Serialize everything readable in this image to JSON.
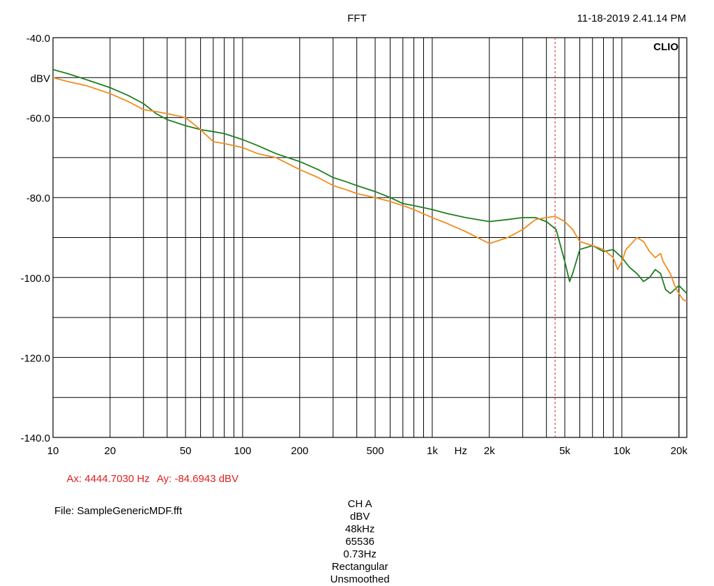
{
  "header": {
    "title": "FFT",
    "timestamp": "11-18-2019 2.41.14 PM",
    "brand": "CLIO"
  },
  "cursor": {
    "ax_text": "Ax: 4444.7030 Hz",
    "ay_text": "Ay: -84.6943 dBV",
    "color": "#e0201e"
  },
  "settings": {
    "channel": "CH A",
    "unit": "dBV",
    "sample_rate": "48kHz",
    "fft_size": "65536",
    "resolution": "0.73Hz",
    "window": "Rectangular",
    "smoothing": "Unsmoothed"
  },
  "file": "File: SampleGenericMDF.fft",
  "chart_data": {
    "type": "line",
    "title": "FFT",
    "x_scale": "log",
    "xlim": [
      10,
      22000
    ],
    "ylim": [
      -140,
      -40
    ],
    "grid": true,
    "xlabel": "Hz",
    "ylabel": "dBV",
    "x_ticks": [
      {
        "value": 10,
        "label": "10"
      },
      {
        "value": 20,
        "label": "20"
      },
      {
        "value": 50,
        "label": "50"
      },
      {
        "value": 100,
        "label": "100"
      },
      {
        "value": 200,
        "label": "200"
      },
      {
        "value": 500,
        "label": "500"
      },
      {
        "value": 1000,
        "label": "1k"
      },
      {
        "value": 2000,
        "label": "2k"
      },
      {
        "value": 5000,
        "label": "5k"
      },
      {
        "value": 10000,
        "label": "10k"
      },
      {
        "value": 20000,
        "label": "20k"
      }
    ],
    "y_ticks": [
      {
        "value": -40,
        "label": "-40.0"
      },
      {
        "value": -60,
        "label": "-60.0"
      },
      {
        "value": -80,
        "label": "-80.0"
      },
      {
        "value": -100,
        "label": "-100.0"
      },
      {
        "value": -120,
        "label": "-120.0"
      },
      {
        "value": -140,
        "label": "-140.0"
      }
    ],
    "cursor_x": 4444.703,
    "series": [
      {
        "color": "#1f7f1f",
        "x": [
          10,
          12,
          15,
          20,
          25,
          30,
          35,
          40,
          50,
          60,
          70,
          80,
          100,
          120,
          150,
          200,
          250,
          300,
          350,
          400,
          500,
          600,
          700,
          800,
          1000,
          1200,
          1500,
          2000,
          2500,
          3000,
          3500,
          4000,
          4500,
          5000,
          5300,
          5500,
          6000,
          7000,
          8000,
          9000,
          10000,
          11000,
          12000,
          13000,
          14000,
          15000,
          16000,
          17000,
          18000,
          19000,
          20000,
          22000
        ],
        "y": [
          -48,
          -49,
          -50.5,
          -52.5,
          -54.5,
          -56.5,
          -59,
          -60.5,
          -62,
          -63,
          -63.5,
          -64,
          -65.5,
          -67,
          -69,
          -71,
          -73,
          -75,
          -76,
          -77,
          -78.5,
          -80,
          -81.5,
          -82,
          -83,
          -84,
          -85,
          -86,
          -85.5,
          -85,
          -85,
          -86,
          -88,
          -96,
          -101,
          -99,
          -93,
          -92,
          -93.5,
          -93,
          -95,
          -97.5,
          -99,
          -101,
          -100,
          -98,
          -99,
          -103,
          -104,
          -103,
          -102,
          -104
        ]
      },
      {
        "color": "#f08c1e",
        "x": [
          10,
          12,
          15,
          20,
          25,
          30,
          35,
          40,
          50,
          60,
          70,
          80,
          100,
          120,
          150,
          200,
          250,
          300,
          350,
          400,
          500,
          600,
          700,
          800,
          1000,
          1200,
          1500,
          2000,
          2500,
          3000,
          3500,
          4000,
          4444.7,
          5000,
          5500,
          6000,
          7000,
          8000,
          9000,
          9500,
          10000,
          10500,
          11000,
          11500,
          12000,
          13000,
          14000,
          15000,
          16000,
          16500,
          17000,
          18000,
          19000,
          20000,
          21000,
          22000
        ],
        "y": [
          -50,
          -51,
          -52,
          -54,
          -56,
          -58,
          -58.5,
          -59,
          -60,
          -63,
          -66,
          -66.5,
          -67.5,
          -69,
          -70,
          -73,
          -75,
          -77,
          -78,
          -79,
          -80,
          -81,
          -82,
          -83,
          -85,
          -86.5,
          -88.5,
          -91.5,
          -90,
          -88,
          -85.5,
          -85,
          -84.7,
          -86,
          -88,
          -91,
          -92,
          -93,
          -95,
          -98,
          -96,
          -93,
          -92,
          -91,
          -90,
          -91,
          -93.5,
          -95,
          -94,
          -96,
          -97,
          -99,
          -102,
          -104,
          -105.5,
          -106
        ]
      }
    ]
  }
}
